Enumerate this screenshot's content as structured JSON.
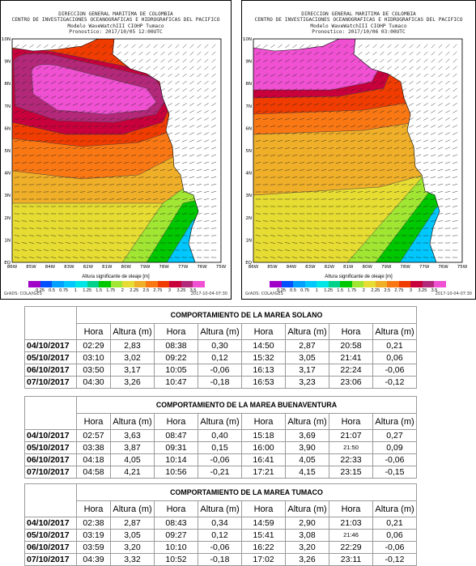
{
  "maps": [
    {
      "header": [
        "DIRECCION GENERAL MARITIMA DE COLOMBIA",
        "CENTRO DE INVESTIGACIONES OCEANOGRAFICAS E HIDROGRAFICAS DEL PACIFICO",
        "Modelo WaveWatchIII CIOHP Tumaco",
        "Pronostico: 2017/10/05 12:00UTC"
      ],
      "footer_left": "GrADS: COLA/IGES",
      "footer_right": "2017-10-04-07:30"
    },
    {
      "header": [
        "DIRECCION GENERAL MARITIMA DE COLOMBIA",
        "CENTRO DE INVESTIGACIONES OCEANOGRAFICAS E HIDROGRAFICAS DEL PACIFICO",
        "Modelo WaveWatchIII CIOHP Tumaco",
        "Pronostico: 2017/10/06 03:00UTC"
      ],
      "footer_left": "GrADS: COLA/IGES",
      "footer_right": "2017-10-04-07:30"
    }
  ],
  "lat_labels": [
    "10N",
    "9N",
    "8N",
    "7N",
    "6N",
    "5N",
    "4N",
    "3N",
    "2N",
    "1N",
    "EQ"
  ],
  "lon_labels": [
    "86W",
    "85W",
    "84W",
    "83W",
    "82W",
    "81W",
    "80W",
    "79W",
    "78W",
    "77W",
    "76W",
    "75W"
  ],
  "legend": {
    "title": "Altura significante de oleaje [m]",
    "ticks": [
      "0.25",
      "0.5",
      "0.75",
      "1",
      "1.25",
      "1.5",
      "1.75",
      "2",
      "2.25",
      "2.5",
      "2.75",
      "3",
      "3.25",
      "3.5"
    ],
    "colors": [
      "#a000c8",
      "#0050ff",
      "#00a0ff",
      "#00c8ff",
      "#00e6e6",
      "#00d28c",
      "#00c800",
      "#a0e632",
      "#e6dc32",
      "#f0af28",
      "#fa7814",
      "#f03c00",
      "#c8003c",
      "#b4287a",
      "#f050d2"
    ]
  },
  "tables": [
    {
      "title": "COMPORTAMIENTO DE LA MAREA SOLANO",
      "headers": [
        "Hora",
        "Altura (m)",
        "Hora",
        "Altura (m)",
        "Hora",
        "Altura (m)",
        "Hora",
        "Altura (m)"
      ],
      "rows": [
        {
          "date": "04/10/2017",
          "cells": [
            "02:29",
            "2,83",
            "08:38",
            "0,30",
            "14:50",
            "2,87",
            "20:58",
            "0,21"
          ]
        },
        {
          "date": "05/10/2017",
          "cells": [
            "03:10",
            "3,02",
            "09:22",
            "0,12",
            "15:32",
            "3,05",
            "21:41",
            "0,06"
          ]
        },
        {
          "date": "06/10/2017",
          "cells": [
            "03:50",
            "3,17",
            "10:05",
            "-0,06",
            "16:13",
            "3,17",
            "22:24",
            "-0,06"
          ]
        },
        {
          "date": "07/10/2017",
          "cells": [
            "04:30",
            "3,26",
            "10:47",
            "-0,18",
            "16:53",
            "3,23",
            "23:06",
            "-0,12"
          ]
        }
      ]
    },
    {
      "title": "COMPORTAMIENTO DE LA MAREA BUENAVENTURA",
      "headers": [
        "Hora",
        "Altura (m)",
        "Hora",
        "Altura (m)",
        "Hora",
        "Altura (m)",
        "Hora",
        "Altura (m)"
      ],
      "rows": [
        {
          "date": "04/10/2017",
          "cells": [
            "02:57",
            "3,63",
            "08:47",
            "0,40",
            "15:18",
            "3,69",
            "21:07",
            "0,27"
          ]
        },
        {
          "date": "05/10/2017",
          "cells": [
            "03:38",
            "3,87",
            "09:31",
            "0,15",
            "16:00",
            "3,90",
            "21:50",
            "0,09"
          ]
        },
        {
          "date": "06/10/2017",
          "cells": [
            "04:18",
            "4,05",
            "10:14",
            "-0,06",
            "16:41",
            "4,05",
            "22:33",
            "-0,06"
          ]
        },
        {
          "date": "07/10/2017",
          "cells": [
            "04:58",
            "4,21",
            "10:56",
            "-0,21",
            "17:21",
            "4,15",
            "23:15",
            "-0,15"
          ]
        }
      ]
    },
    {
      "title": "COMPORTAMIENTO DE LA MAREA TUMACO",
      "headers": [
        "Hora",
        "Altura (m)",
        "Hora",
        "Altura (m)",
        "Hora",
        "Altura (m)",
        "Hora",
        "Altura (m)"
      ],
      "rows": [
        {
          "date": "04/10/2017",
          "cells": [
            "02:38",
            "2,87",
            "08:43",
            "0,34",
            "14:59",
            "2,90",
            "21:03",
            "0,21"
          ]
        },
        {
          "date": "05/10/2017",
          "cells": [
            "03:19",
            "3,05",
            "09:27",
            "0,12",
            "15:41",
            "3,08",
            "21:46",
            "0,06"
          ]
        },
        {
          "date": "06/10/2017",
          "cells": [
            "03:59",
            "3,20",
            "10:10",
            "-0,06",
            "16:22",
            "3,20",
            "22:29",
            "-0,06"
          ]
        },
        {
          "date": "07/10/2017",
          "cells": [
            "04:39",
            "3,32",
            "10:52",
            "-0,18",
            "17:02",
            "3,26",
            "23:11",
            "-0,12"
          ]
        }
      ]
    }
  ]
}
